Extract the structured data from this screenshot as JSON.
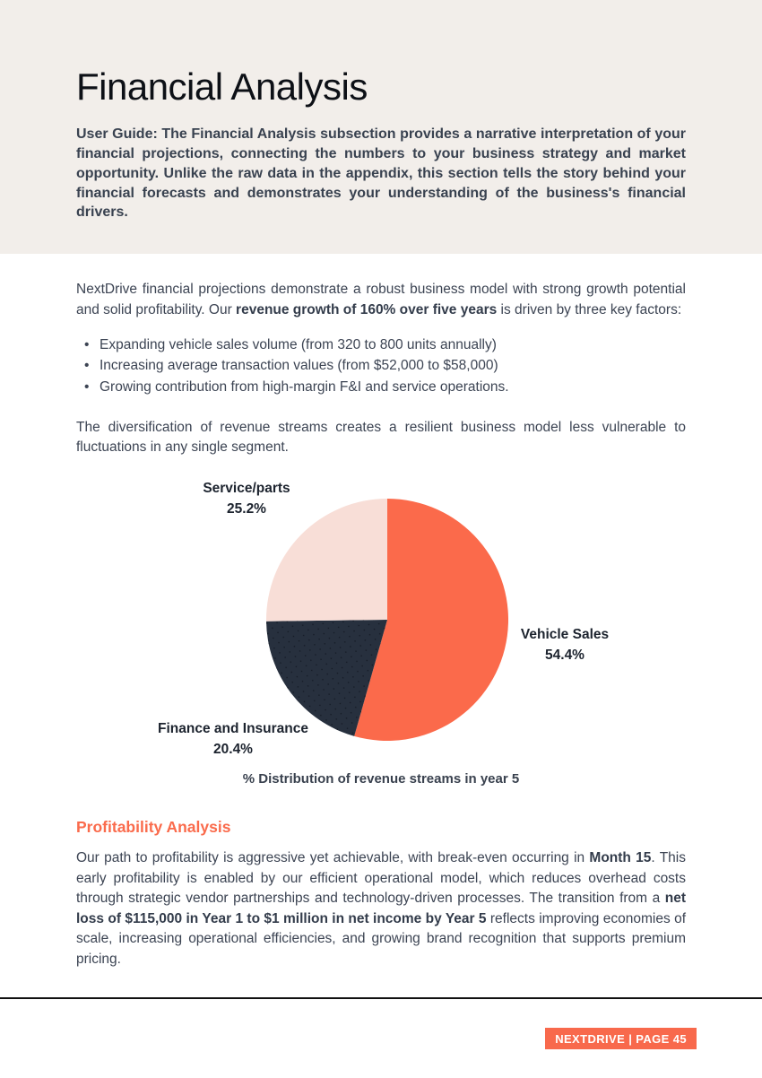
{
  "header": {
    "title": "Financial Analysis",
    "user_guide": "User Guide: The Financial Analysis subsection provides a narrative interpretation of your financial projections, connecting the numbers to your business strategy and market opportunity. Unlike the raw data in the appendix, this section tells the story behind your financial forecasts and demonstrates your understanding of the business's financial drivers."
  },
  "intro": {
    "paragraph": [
      {
        "t": "NextDrive financial projections demonstrate a robust business model with strong growth potential and solid profitability. Our ",
        "b": false
      },
      {
        "t": "revenue growth of 160% over five years",
        "b": true
      },
      {
        "t": " is driven by three key factors:",
        "b": false
      }
    ],
    "bullets": [
      "Expanding vehicle sales volume (from 320 to 800 units annually)",
      "Increasing average transaction values (from $52,000 to $58,000)",
      "Growing contribution from high-margin F&I and service operations."
    ],
    "diversification": "The diversification of revenue streams creates a resilient business model less vulnerable to fluctuations in any single segment."
  },
  "chart_data": {
    "type": "pie",
    "title": "% Distribution of revenue streams in year 5",
    "start_angle": "12 o'clock",
    "direction": "clockwise",
    "slices": [
      {
        "label": "Vehicle Sales",
        "value": 54.4,
        "display": "54.4%",
        "color": "#fb6a4b",
        "dotted": false
      },
      {
        "label": "Finance and Insurance",
        "value": 20.4,
        "display": "20.4%",
        "color": "#27303e",
        "dotted": true
      },
      {
        "label": "Service/parts",
        "value": 25.2,
        "display": "25.2%",
        "color": "#f8ded7",
        "dotted": false
      }
    ]
  },
  "profitability": {
    "heading": "Profitability Analysis",
    "paragraph": [
      {
        "t": "Our path to profitability is aggressive yet achievable, with break-even occurring in ",
        "b": false
      },
      {
        "t": "Month 15",
        "b": true
      },
      {
        "t": ". This early profitability is enabled by our efficient operational model, which reduces overhead costs through strategic vendor partnerships and technology-driven processes. The transition from a ",
        "b": false
      },
      {
        "t": "net loss of $115,000 in Year 1 to $1 million in net income by Year 5",
        "b": true
      },
      {
        "t": " reflects improving economies of scale, increasing operational efficiencies, and growing brand recognition that supports premium pricing.",
        "b": false
      }
    ]
  },
  "footer": {
    "badge": "NEXTDRIVE | PAGE 45"
  },
  "colors": {
    "header_background": "#f2eeea",
    "accent_orange": "#fa6b4c",
    "pie_navy": "#27303e",
    "pie_pink": "#f8ded7",
    "body_text": "#3c4453"
  }
}
